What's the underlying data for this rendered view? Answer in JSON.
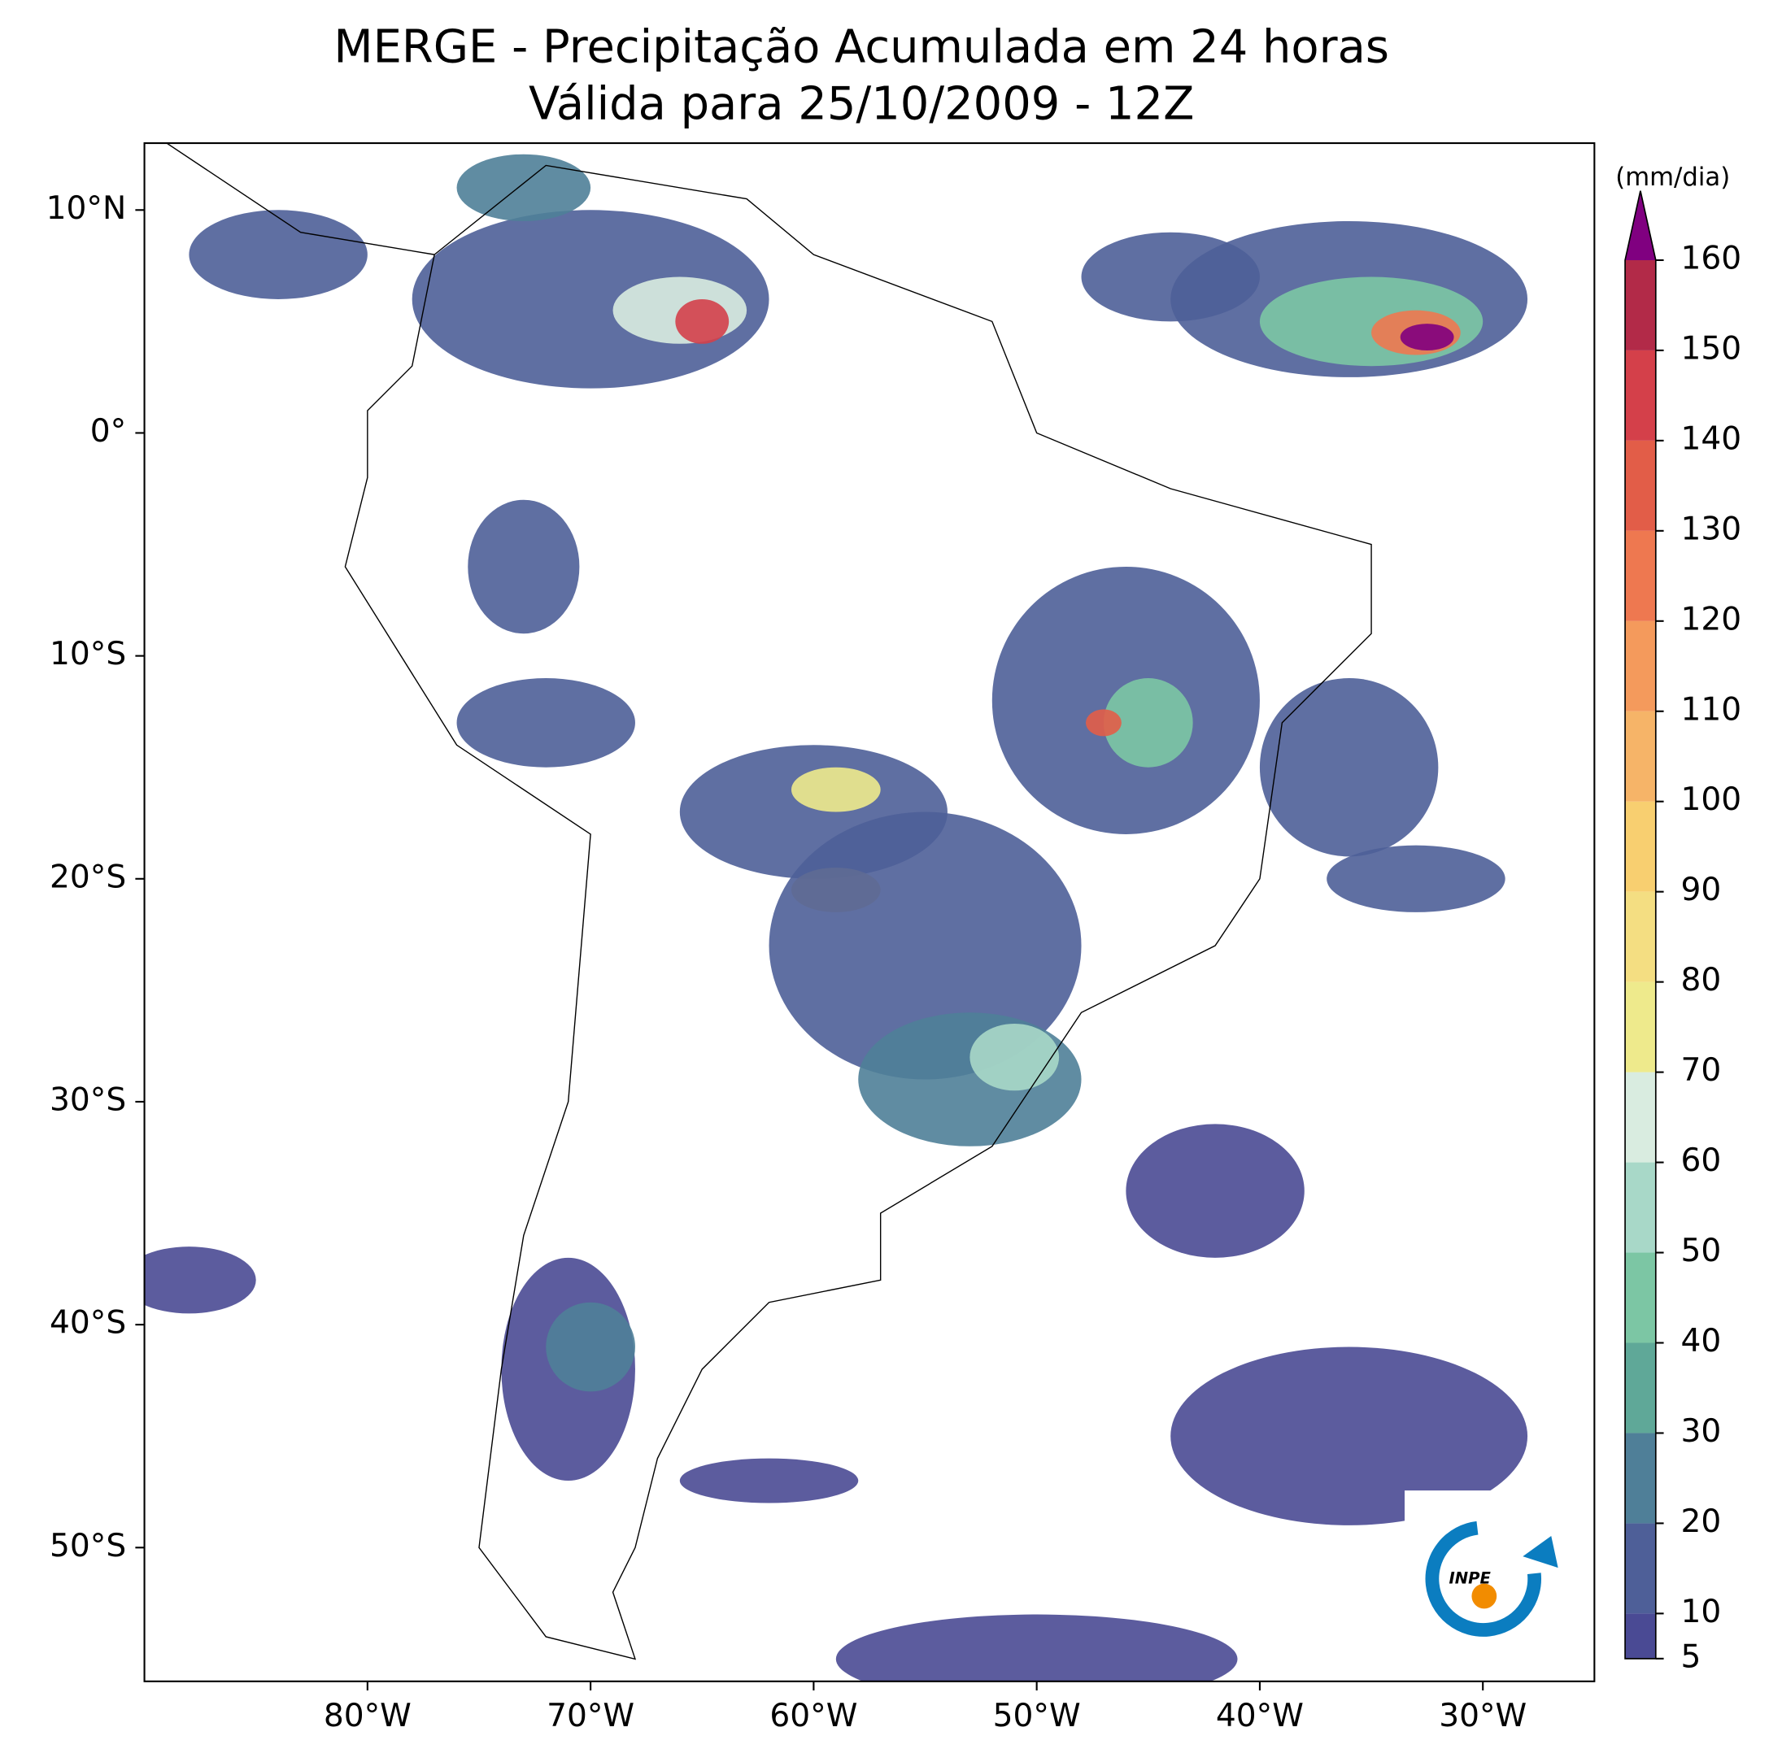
{
  "chart_data": {
    "type": "map",
    "title": "MERGE - Precipitação Acumulada em 24 horas",
    "subtitle": "Válida para 25/10/2009 - 12Z",
    "xlim": [
      -90,
      -25
    ],
    "ylim": [
      -56,
      13
    ],
    "xticks": [
      {
        "value": -80,
        "label": "80°W"
      },
      {
        "value": -70,
        "label": "70°W"
      },
      {
        "value": -60,
        "label": "60°W"
      },
      {
        "value": -50,
        "label": "50°W"
      },
      {
        "value": -40,
        "label": "40°W"
      },
      {
        "value": -30,
        "label": "30°W"
      }
    ],
    "yticks": [
      {
        "value": 10,
        "label": "10°N"
      },
      {
        "value": 0,
        "label": "0°"
      },
      {
        "value": -10,
        "label": "10°S"
      },
      {
        "value": -20,
        "label": "20°S"
      },
      {
        "value": -30,
        "label": "30°S"
      },
      {
        "value": -40,
        "label": "40°S"
      },
      {
        "value": -50,
        "label": "50°S"
      }
    ],
    "colorbar": {
      "label": "(mm/dia)",
      "levels": [
        5,
        10,
        20,
        30,
        40,
        50,
        60,
        70,
        80,
        90,
        100,
        110,
        120,
        130,
        140,
        150,
        160
      ],
      "colors": [
        "#4a4a94",
        "#4e5f98",
        "#4f7f98",
        "#5fa898",
        "#7cc6a4",
        "#a8d8c8",
        "#d9ece0",
        "#eeea8c",
        "#f4de82",
        "#f8cf70",
        "#f6b468",
        "#f49a5c",
        "#ee7850",
        "#e25d48",
        "#d4404a",
        "#b22a48"
      ],
      "extend_color": "#800080"
    },
    "logo_text": "INPE"
  }
}
